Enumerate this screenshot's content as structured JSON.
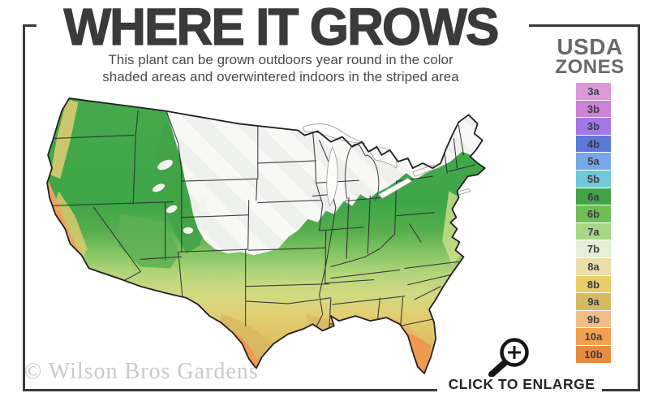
{
  "header": {
    "title": "WHERE IT GROWS",
    "subtitle_line1": "This plant can be grown outdoors year round in the color",
    "subtitle_line2": "shaded areas and overwintered indoors in the striped area"
  },
  "legend": {
    "title_line1": "USDA",
    "title_line2": "ZONES",
    "label_color": "#3c3c46",
    "zones": [
      {
        "label": "3a",
        "color": "#dc99d9"
      },
      {
        "label": "3b",
        "color": "#cb83d3"
      },
      {
        "label": "3b",
        "color": "#a277e7"
      },
      {
        "label": "4b",
        "color": "#5c79d7"
      },
      {
        "label": "5a",
        "color": "#77a7e7"
      },
      {
        "label": "5b",
        "color": "#6fc9d7"
      },
      {
        "label": "6a",
        "color": "#42a347"
      },
      {
        "label": "6b",
        "color": "#6fbd54"
      },
      {
        "label": "7a",
        "color": "#a8d687"
      },
      {
        "label": "7b",
        "color": "#e3f0d7"
      },
      {
        "label": "8a",
        "color": "#eadda8"
      },
      {
        "label": "8b",
        "color": "#e7cd66"
      },
      {
        "label": "9a",
        "color": "#d6ba62"
      },
      {
        "label": "9b",
        "color": "#f1bd86"
      },
      {
        "label": "10a",
        "color": "#f0a251"
      },
      {
        "label": "10b",
        "color": "#e78c3f"
      }
    ]
  },
  "map": {
    "watermark": "© Wilson Bros Gardens",
    "palette": {
      "green": "#42a347",
      "light_green": "#8cc968",
      "yellow_green": "#cfe08c",
      "yellow": "#e2cc73",
      "tan": "#d7b860",
      "orange": "#eca362",
      "deep_orange": "#ee9b50",
      "striped_white": "#f2f3f1",
      "state_border": "#2d2d2d"
    }
  },
  "footer": {
    "enlarge_label": "CLICK TO ENLARGE"
  },
  "frame": {
    "color": "#3a3a3a"
  }
}
